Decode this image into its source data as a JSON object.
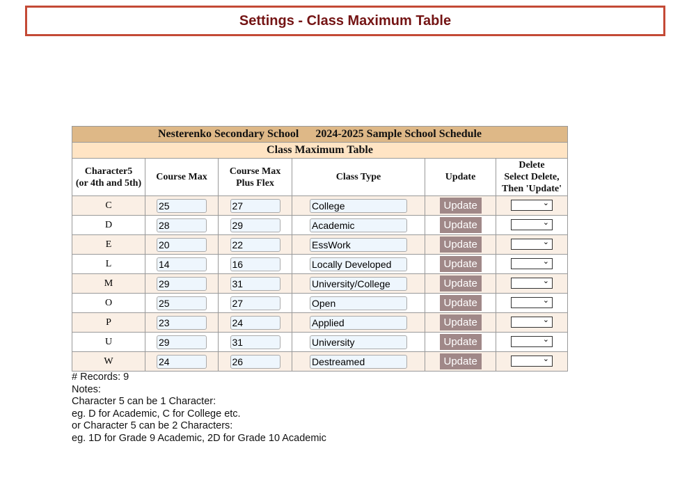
{
  "page_title": "Settings - Class Maximum Table",
  "table": {
    "school": "Nesterenko Secondary School",
    "schedule": "2024-2025 Sample School Schedule",
    "subtitle": "Class Maximum Table",
    "headers": {
      "char5_a": "Character5",
      "char5_b": "(or 4th and 5th)",
      "course_max": "Course Max",
      "plus_flex_a": "Course Max",
      "plus_flex_b": "Plus Flex",
      "class_type": "Class Type",
      "update": "Update",
      "delete_a": "Delete",
      "delete_b": "Select Delete,",
      "delete_c": "Then 'Update'"
    },
    "update_label": "Update",
    "rows": [
      {
        "char": "C",
        "max": "25",
        "flex": "27",
        "type": "College"
      },
      {
        "char": "D",
        "max": "28",
        "flex": "29",
        "type": "Academic"
      },
      {
        "char": "E",
        "max": "20",
        "flex": "22",
        "type": "EssWork"
      },
      {
        "char": "L",
        "max": "14",
        "flex": "16",
        "type": "Locally Developed"
      },
      {
        "char": "M",
        "max": "29",
        "flex": "31",
        "type": "University/College"
      },
      {
        "char": "O",
        "max": "25",
        "flex": "27",
        "type": "Open"
      },
      {
        "char": "P",
        "max": "23",
        "flex": "24",
        "type": "Applied"
      },
      {
        "char": "U",
        "max": "29",
        "flex": "31",
        "type": "University"
      },
      {
        "char": "W",
        "max": "24",
        "flex": "26",
        "type": "Destreamed"
      }
    ]
  },
  "notes": [
    "# Records: 9",
    "Notes:",
    "Character 5 can be 1 Character:",
    "eg. D for Academic, C for College etc.",
    "or Character 5 can be 2 Characters:",
    "eg. 1D for Grade 9 Academic, 2D for Grade 10 Academic"
  ]
}
